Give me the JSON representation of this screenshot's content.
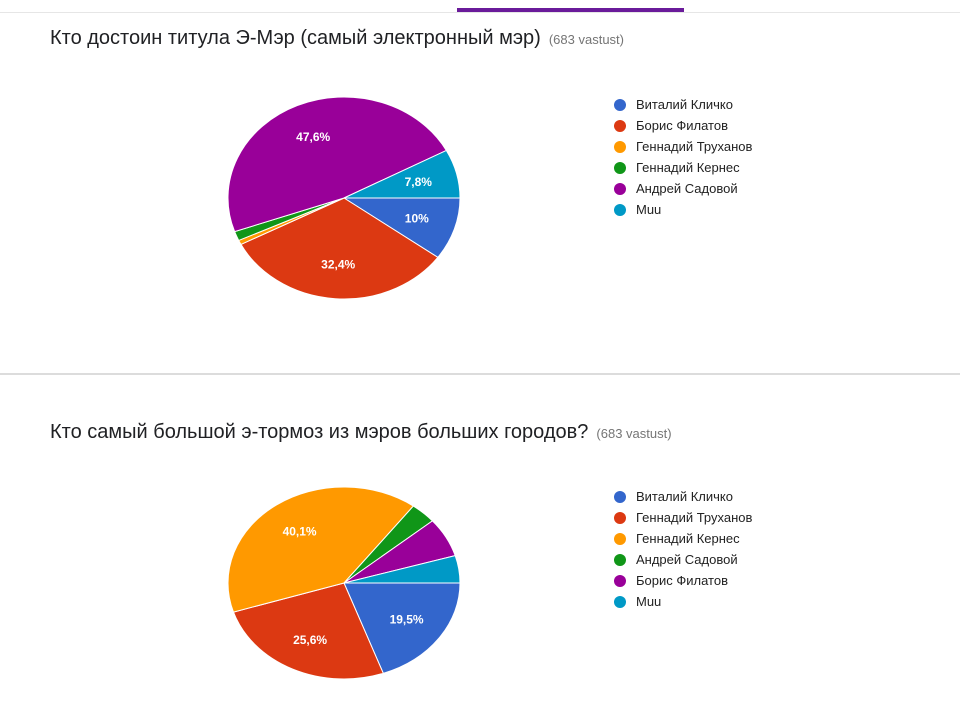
{
  "chart_data": [
    {
      "type": "pie",
      "title": "Кто достоин титула Э-Мэр (самый электронный мэр)",
      "response_count": "(683 vastust)",
      "categories": [
        "Виталий Кличко",
        "Борис Филатов",
        "Геннадий Труханов",
        "Геннадий Кернес",
        "Андрей Садовой",
        "Muu"
      ],
      "values": [
        10,
        32.4,
        0.7,
        1.5,
        47.6,
        7.8
      ],
      "data_labels": [
        "10%",
        "32,4%",
        "",
        "",
        "47,6%",
        "7,8%"
      ],
      "colors": [
        "#3366cc",
        "#dc3912",
        "#ff9900",
        "#109618",
        "#990099",
        "#0099c6"
      ],
      "legend_position": "right"
    },
    {
      "type": "pie",
      "title": "Кто самый большой э-тормоз из мэров больших городов?",
      "response_count": "(683 vastust)",
      "categories": [
        "Виталий Кличко",
        "Геннадий Труханов",
        "Геннадий Кернес",
        "Андрей Садовой",
        "Борис Филатов",
        "Muu"
      ],
      "values": [
        19.5,
        25.6,
        40.1,
        3.6,
        6.6,
        4.6
      ],
      "data_labels": [
        "19,5%",
        "25,6%",
        "40,1%",
        "",
        "",
        ""
      ],
      "colors": [
        "#3366cc",
        "#dc3912",
        "#ff9900",
        "#109618",
        "#990099",
        "#0099c6"
      ],
      "legend_position": "right"
    }
  ]
}
